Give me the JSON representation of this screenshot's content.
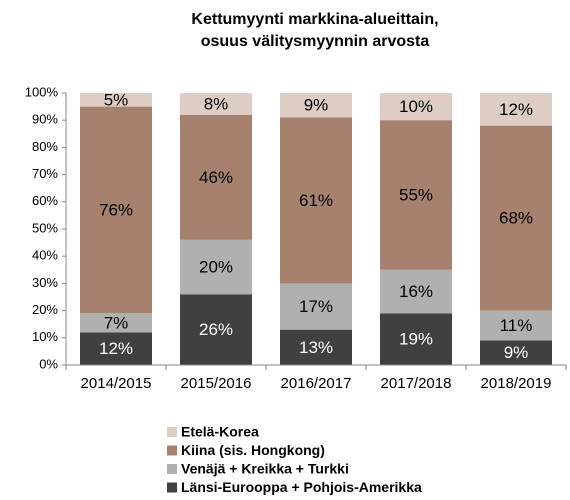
{
  "chart_data": {
    "type": "stacked_bar",
    "title": [
      "Kettumyynti markkina-alueittain,",
      "osuus välitysmyynnin arvosta"
    ],
    "categories": [
      "2014/2015",
      "2015/2016",
      "2016/2017",
      "2017/2018",
      "2018/2019"
    ],
    "series": [
      {
        "name": "Länsi-Eurooppa + Pohjois-Amerikka",
        "color": "#404040",
        "label_color": "#ffffff",
        "values": [
          12,
          26,
          13,
          19,
          9
        ],
        "value_labels": [
          "12%",
          "26%",
          "13%",
          "19%",
          "9%"
        ]
      },
      {
        "name": "Venäjä + Kreikka + Turkki",
        "color": "#b0b0b0",
        "label_color": "#000000",
        "values": [
          7,
          20,
          17,
          16,
          11
        ],
        "value_labels": [
          "7%",
          "20%",
          "17%",
          "16%",
          "11%"
        ]
      },
      {
        "name": "Kiina (sis. Hongkong)",
        "color": "#a6826e",
        "label_color": "#000000",
        "values": [
          76,
          46,
          61,
          55,
          68
        ],
        "value_labels": [
          "76%",
          "46%",
          "61%",
          "55%",
          "68%"
        ]
      },
      {
        "name": "Etelä-Korea",
        "color": "#ddcdc5",
        "label_color": "#000000",
        "values": [
          5,
          8,
          9,
          10,
          12
        ],
        "value_labels": [
          "5%",
          "8%",
          "9%",
          "10%",
          "12%"
        ]
      }
    ],
    "ylim": [
      0,
      100
    ],
    "yticks": [
      {
        "value": 0,
        "label": "0%"
      },
      {
        "value": 10,
        "label": "10%"
      },
      {
        "value": 20,
        "label": "20%"
      },
      {
        "value": 30,
        "label": "30%"
      },
      {
        "value": 40,
        "label": "40%"
      },
      {
        "value": 50,
        "label": "50%"
      },
      {
        "value": 60,
        "label": "60%"
      },
      {
        "value": 70,
        "label": "70%"
      },
      {
        "value": 80,
        "label": "80%"
      },
      {
        "value": 90,
        "label": "90%"
      },
      {
        "value": 100,
        "label": "100%"
      }
    ],
    "legend": "bottom"
  }
}
